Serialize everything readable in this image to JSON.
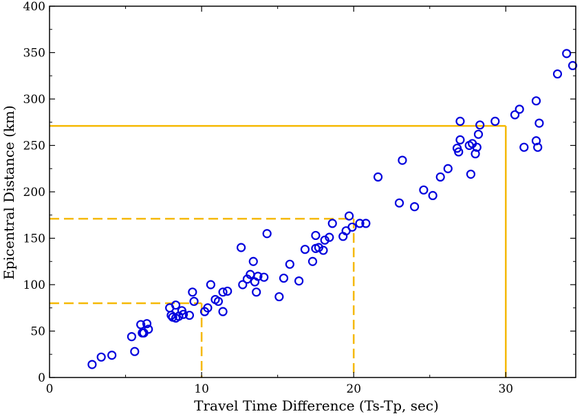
{
  "chart_data": {
    "type": "scatter",
    "title": "",
    "xlabel": "Travel Time Difference (Ts-Tp, sec)",
    "ylabel": "Epicentral Distance (km)",
    "xlim": [
      0,
      34.6
    ],
    "ylim": [
      0,
      400
    ],
    "x_ticks": [
      0,
      10,
      20,
      30
    ],
    "x_tick_labels": [
      "0",
      "10",
      "20",
      "30"
    ],
    "y_ticks": [
      0,
      50,
      100,
      150,
      200,
      250,
      300,
      350,
      400
    ],
    "y_tick_labels": [
      "0",
      "50",
      "100",
      "150",
      "200",
      "250",
      "300",
      "350",
      "400"
    ],
    "grid": false,
    "colors": {
      "points": "#0000dd",
      "guides": "#f5b800"
    },
    "series": [
      {
        "marker": "open-circle",
        "points": [
          [
            2.8,
            14
          ],
          [
            3.4,
            22
          ],
          [
            4.1,
            24
          ],
          [
            5.4,
            44
          ],
          [
            5.6,
            28
          ],
          [
            6.0,
            57
          ],
          [
            6.1,
            48
          ],
          [
            6.2,
            48
          ],
          [
            6.4,
            58
          ],
          [
            6.5,
            52
          ],
          [
            7.9,
            75
          ],
          [
            8.0,
            67
          ],
          [
            8.1,
            65
          ],
          [
            8.3,
            78
          ],
          [
            8.3,
            64
          ],
          [
            8.5,
            66
          ],
          [
            8.7,
            72
          ],
          [
            8.8,
            68
          ],
          [
            9.2,
            67
          ],
          [
            9.4,
            92
          ],
          [
            9.5,
            82
          ],
          [
            10.2,
            71
          ],
          [
            10.4,
            75
          ],
          [
            10.6,
            100
          ],
          [
            10.9,
            84
          ],
          [
            11.1,
            82
          ],
          [
            11.4,
            92
          ],
          [
            11.4,
            71
          ],
          [
            11.7,
            93
          ],
          [
            12.6,
            140
          ],
          [
            12.7,
            100
          ],
          [
            13.0,
            106
          ],
          [
            13.2,
            111
          ],
          [
            13.4,
            125
          ],
          [
            13.5,
            103
          ],
          [
            13.6,
            92
          ],
          [
            13.7,
            109
          ],
          [
            14.1,
            108
          ],
          [
            14.3,
            155
          ],
          [
            15.1,
            87
          ],
          [
            15.4,
            107
          ],
          [
            15.8,
            122
          ],
          [
            16.4,
            104
          ],
          [
            16.8,
            138
          ],
          [
            17.3,
            125
          ],
          [
            17.5,
            153
          ],
          [
            17.5,
            139
          ],
          [
            17.7,
            140
          ],
          [
            18.0,
            137
          ],
          [
            18.1,
            148
          ],
          [
            18.4,
            151
          ],
          [
            18.6,
            166
          ],
          [
            19.3,
            152
          ],
          [
            19.5,
            158
          ],
          [
            19.7,
            174
          ],
          [
            19.9,
            162
          ],
          [
            20.4,
            166
          ],
          [
            20.8,
            166
          ],
          [
            21.6,
            216
          ],
          [
            23.0,
            188
          ],
          [
            23.2,
            234
          ],
          [
            24.0,
            184
          ],
          [
            24.6,
            202
          ],
          [
            25.2,
            196
          ],
          [
            25.7,
            216
          ],
          [
            26.2,
            225
          ],
          [
            26.8,
            247
          ],
          [
            26.9,
            243
          ],
          [
            27.0,
            256
          ],
          [
            27.0,
            276
          ],
          [
            27.6,
            250
          ],
          [
            27.7,
            219
          ],
          [
            27.8,
            252
          ],
          [
            28.0,
            241
          ],
          [
            28.1,
            248
          ],
          [
            28.2,
            262
          ],
          [
            28.3,
            272
          ],
          [
            29.3,
            276
          ],
          [
            30.6,
            283
          ],
          [
            30.9,
            289
          ],
          [
            31.2,
            248
          ],
          [
            32.0,
            255
          ],
          [
            32.0,
            298
          ],
          [
            32.1,
            248
          ],
          [
            32.2,
            274
          ],
          [
            33.4,
            327
          ],
          [
            34.0,
            349
          ],
          [
            34.4,
            336
          ]
        ]
      }
    ],
    "reference_lines": [
      {
        "x": 10,
        "y": 80,
        "style": "dashed"
      },
      {
        "x": 20,
        "y": 171,
        "style": "dashed"
      },
      {
        "x": 30,
        "y": 271,
        "style": "solid"
      }
    ]
  }
}
